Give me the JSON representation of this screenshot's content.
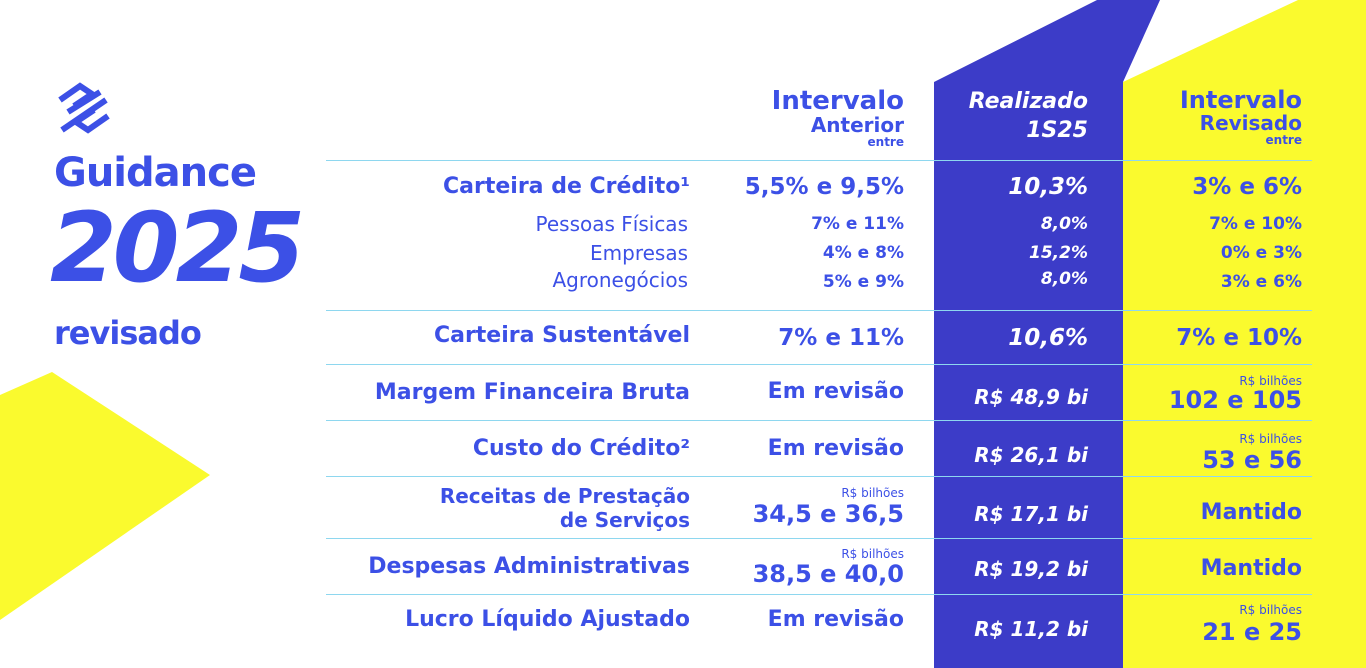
{
  "brand": {
    "logo": "banco-do-brasil-logo"
  },
  "title": {
    "guidance": "Guidance",
    "year": "2025",
    "status": "revisado"
  },
  "colors": {
    "blue": "#3c50e6",
    "yellow": "#fafa2e",
    "line": "#8ed7ef",
    "white": "#ffffff"
  },
  "headers": {
    "previous": {
      "line1": "Intervalo",
      "line2": "Anterior",
      "line3": "entre"
    },
    "realized": {
      "line1": "Realizado",
      "line2": "1S25"
    },
    "revised": {
      "line1": "Intervalo",
      "line2": "Revisado",
      "line3": "entre"
    }
  },
  "unit_label": "R$ bilhões",
  "rows": {
    "credit": {
      "label": "Carteira de Crédito¹",
      "previous": "5,5% e 9,5%",
      "realized": "10,3%",
      "revised": "3% e 6%",
      "subs": [
        {
          "label": "Pessoas Físicas",
          "previous": "7% e 11%",
          "realized": "8,0%",
          "revised": "7% e 10%"
        },
        {
          "label": "Empresas",
          "previous": "4% e 8%",
          "realized": "15,2%",
          "revised": "0% e 3%"
        },
        {
          "label": "Agronegócios",
          "previous": "5% e 9%",
          "realized": "8,0%",
          "revised": "3% e 6%"
        }
      ]
    },
    "sustainable": {
      "label": "Carteira Sustentável",
      "previous": "7% e 11%",
      "realized": "10,6%",
      "revised": "7% e 10%"
    },
    "margin": {
      "label": "Margem Financeira Bruta",
      "previous": "Em revisão",
      "realized": "R$ 48,9 bi",
      "revised": "102 e 105"
    },
    "credit_cost": {
      "label": "Custo do Crédito²",
      "previous": "Em revisão",
      "realized": "R$ 26,1 bi",
      "revised": "53 e 56"
    },
    "services": {
      "label_line1": "Receitas de Prestação",
      "label_line2": "de Serviços",
      "previous": "34,5 e 36,5",
      "realized": "R$ 17,1 bi",
      "revised": "Mantido"
    },
    "expenses": {
      "label": "Despesas Administrativas",
      "previous": "38,5 e 40,0",
      "realized": "R$ 19,2 bi",
      "revised": "Mantido"
    },
    "profit": {
      "label": "Lucro Líquido Ajustado",
      "previous": "Em revisão",
      "realized": "R$ 11,2 bi",
      "revised": "21 e 25"
    }
  }
}
